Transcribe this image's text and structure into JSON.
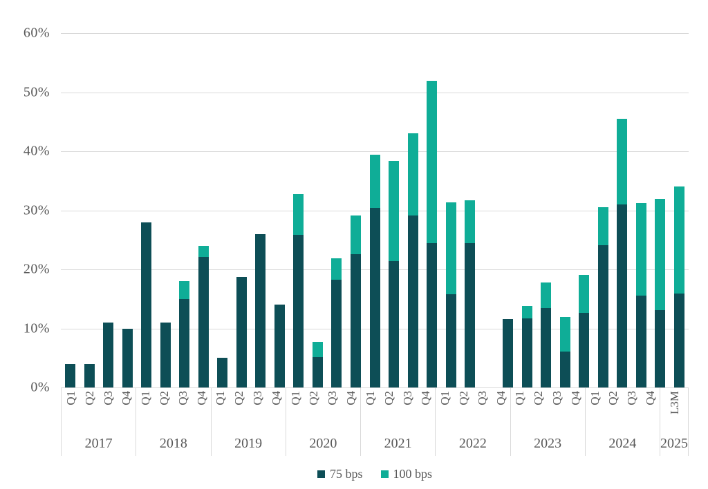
{
  "chart_data": {
    "type": "bar",
    "stacked": true,
    "title": "",
    "xlabel": "",
    "ylabel": "",
    "ylim": [
      0,
      60
    ],
    "ytick_step": 10,
    "ytick_suffix": "%",
    "grid": true,
    "legend_position": "bottom",
    "groups": [
      {
        "year": "2017",
        "quarters": [
          "Q1",
          "Q2",
          "Q3",
          "Q4"
        ]
      },
      {
        "year": "2018",
        "quarters": [
          "Q1",
          "Q2",
          "Q3",
          "Q4"
        ]
      },
      {
        "year": "2019",
        "quarters": [
          "Q1",
          "Q2",
          "Q3",
          "Q4"
        ]
      },
      {
        "year": "2020",
        "quarters": [
          "Q1",
          "Q2",
          "Q3",
          "Q4"
        ]
      },
      {
        "year": "2021",
        "quarters": [
          "Q1",
          "Q2",
          "Q3",
          "Q4"
        ]
      },
      {
        "year": "2022",
        "quarters": [
          "Q1",
          "Q2",
          "Q3",
          "Q4"
        ]
      },
      {
        "year": "2023",
        "quarters": [
          "Q1",
          "Q2",
          "Q3",
          "Q4"
        ]
      },
      {
        "year": "2024",
        "quarters": [
          "Q1",
          "Q2",
          "Q3",
          "Q4"
        ]
      },
      {
        "year": "2025",
        "quarters": [
          "L3M"
        ]
      }
    ],
    "series": [
      {
        "name": "75 bps",
        "color": "#0d4e56",
        "values": [
          4.0,
          4.0,
          11.0,
          10.0,
          28.0,
          11.0,
          15.0,
          22.1,
          5.0,
          18.7,
          26.0,
          14.0,
          25.8,
          5.2,
          18.2,
          22.6,
          30.4,
          21.4,
          29.1,
          24.5,
          15.8,
          24.5,
          0,
          11.6,
          11.7,
          13.5,
          6.1,
          12.6,
          24.1,
          31.0,
          15.6,
          13.1,
          15.9
        ]
      },
      {
        "name": "100 bps",
        "color": "#0fad97",
        "values": [
          0,
          0,
          0,
          0,
          0,
          0,
          3.0,
          1.9,
          0,
          0,
          0,
          0,
          6.9,
          2.5,
          3.7,
          6.5,
          9.0,
          17.0,
          13.9,
          27.4,
          15.5,
          7.2,
          0,
          0,
          2.1,
          4.3,
          5.8,
          6.5,
          6.4,
          14.5,
          15.6,
          18.8,
          18.1
        ]
      }
    ]
  },
  "legend": {
    "items": [
      {
        "label": "75 bps",
        "color": "#0d4e56"
      },
      {
        "label": "100 bps",
        "color": "#0fad97"
      }
    ]
  },
  "colors": {
    "background": "#ffffff",
    "gridline": "#d9d9d9",
    "axis_text": "#595959",
    "series_75bps": "#0d4e56",
    "series_100bps": "#0fad97"
  }
}
